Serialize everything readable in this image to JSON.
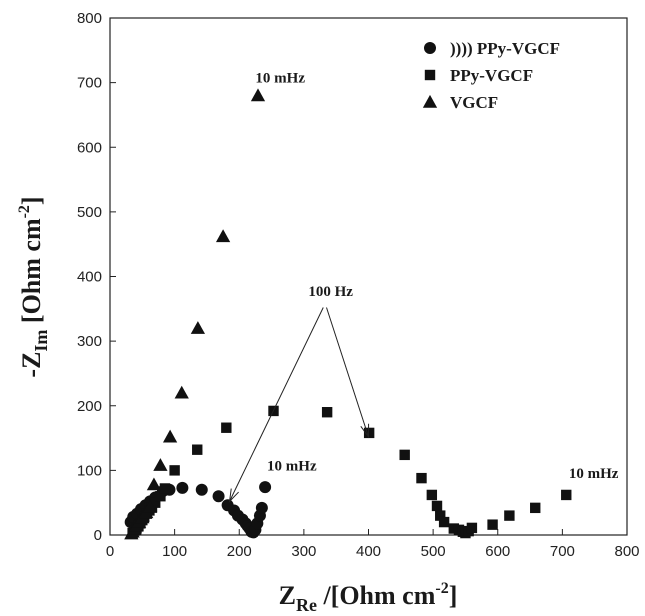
{
  "chart_data": {
    "type": "scatter",
    "xlabel_main": "Z",
    "xlabel_sub": "Re",
    "xlabel_rest": " /[Ohm cm",
    "xlabel_sup": "-2",
    "xlabel_end": "]",
    "ylabel_main": "-Z",
    "ylabel_sub": "Im",
    "ylabel_rest": " [Ohm cm",
    "ylabel_sup": "-2",
    "ylabel_end": "]",
    "xlim": [
      0,
      800
    ],
    "ylim": [
      0,
      800
    ],
    "xticks": [
      0,
      100,
      200,
      300,
      400,
      500,
      600,
      700,
      800
    ],
    "yticks": [
      0,
      100,
      200,
      300,
      400,
      500,
      600,
      700,
      800
    ],
    "grid": false,
    "legend_position": "top-right",
    "series": [
      {
        "name": ")))) PPy-VGCF",
        "marker": "circle",
        "points": [
          [
            32,
            20
          ],
          [
            36,
            28
          ],
          [
            42,
            33
          ],
          [
            48,
            40
          ],
          [
            55,
            46
          ],
          [
            62,
            52
          ],
          [
            70,
            58
          ],
          [
            82,
            68
          ],
          [
            92,
            70
          ],
          [
            112,
            73
          ],
          [
            142,
            70
          ],
          [
            168,
            60
          ],
          [
            182,
            46
          ],
          [
            192,
            38
          ],
          [
            198,
            30
          ],
          [
            205,
            24
          ],
          [
            210,
            18
          ],
          [
            213,
            14
          ],
          [
            216,
            10
          ],
          [
            219,
            5
          ],
          [
            222,
            4
          ],
          [
            225,
            8
          ],
          [
            228,
            18
          ],
          [
            232,
            30
          ],
          [
            235,
            42
          ],
          [
            240,
            74
          ]
        ]
      },
      {
        "name": "PPy-VGCF",
        "marker": "square",
        "points": [
          [
            35,
            3
          ],
          [
            38,
            7
          ],
          [
            41,
            10
          ],
          [
            44,
            14
          ],
          [
            47,
            18
          ],
          [
            50,
            23
          ],
          [
            53,
            28
          ],
          [
            57,
            33
          ],
          [
            61,
            38
          ],
          [
            65,
            43
          ],
          [
            70,
            50
          ],
          [
            78,
            60
          ],
          [
            85,
            72
          ],
          [
            100,
            100
          ],
          [
            135,
            132
          ],
          [
            180,
            166
          ],
          [
            253,
            192
          ],
          [
            336,
            190
          ],
          [
            401,
            158
          ],
          [
            456,
            124
          ],
          [
            482,
            88
          ],
          [
            498,
            62
          ],
          [
            506,
            45
          ],
          [
            511,
            30
          ],
          [
            517,
            20
          ],
          [
            532,
            10
          ],
          [
            540,
            8
          ],
          [
            546,
            5
          ],
          [
            550,
            3
          ],
          [
            555,
            6
          ],
          [
            560,
            11
          ],
          [
            592,
            16
          ],
          [
            618,
            30
          ],
          [
            658,
            42
          ],
          [
            706,
            62
          ]
        ]
      },
      {
        "name": "VGCF",
        "marker": "triangle",
        "points": [
          [
            33,
            2
          ],
          [
            35,
            5
          ],
          [
            38,
            9
          ],
          [
            41,
            14
          ],
          [
            45,
            20
          ],
          [
            50,
            27
          ],
          [
            56,
            35
          ],
          [
            62,
            43
          ],
          [
            68,
            78
          ],
          [
            78,
            108
          ],
          [
            93,
            152
          ],
          [
            111,
            220
          ],
          [
            136,
            320
          ],
          [
            175,
            462
          ],
          [
            229,
            680
          ]
        ]
      }
    ],
    "annotations": [
      {
        "text": "10 mHz",
        "x": 225,
        "y": 700
      },
      {
        "text": "100 Hz",
        "x": 307,
        "y": 370
      },
      {
        "text": "10 mHz",
        "x": 243,
        "y": 100
      },
      {
        "text": "10 mHz",
        "x": 710,
        "y": 88
      }
    ],
    "arrows": [
      {
        "from": [
          330,
          352
        ],
        "to": [
          185,
          52
        ]
      },
      {
        "from": [
          335,
          352
        ],
        "to": [
          400,
          152
        ]
      }
    ]
  }
}
